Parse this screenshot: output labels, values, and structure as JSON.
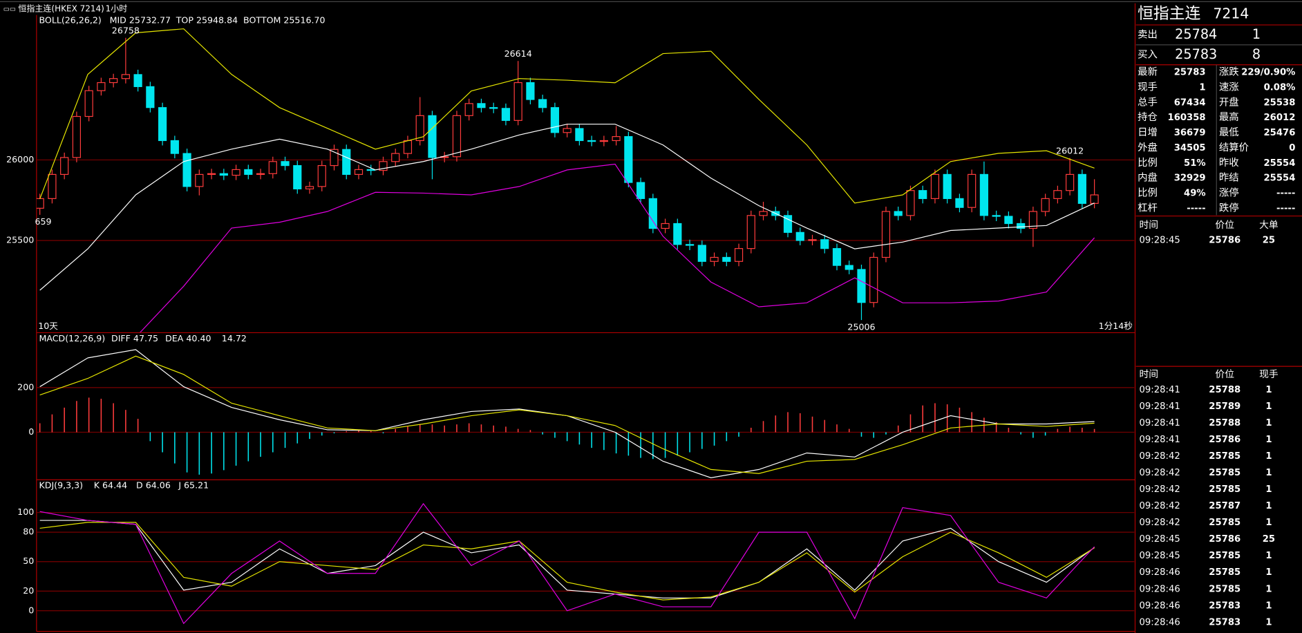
{
  "toolbar": {
    "symbol": "恒指主连(HKEX 7214)",
    "period": "1小时"
  },
  "chart_data": [
    {
      "type": "candlestick",
      "indicator": "BOLL(26,26,2)",
      "indicator_color": "#e6e600",
      "up_color": "#ff3c3c",
      "down_color": "#00e5ee",
      "ohlc": [
        [
          25700,
          25790,
          25659,
          25760
        ],
        [
          25760,
          25940,
          25730,
          25910
        ],
        [
          25910,
          26045,
          25880,
          26015
        ],
        [
          26015,
          26300,
          25985,
          26270
        ],
        [
          26270,
          26460,
          26240,
          26430
        ],
        [
          26430,
          26510,
          26400,
          26480
        ],
        [
          26480,
          26535,
          26450,
          26505
        ],
        [
          26505,
          26758,
          26475,
          26530
        ],
        [
          26530,
          26560,
          26425,
          26455
        ],
        [
          26455,
          26485,
          26295,
          26325
        ],
        [
          26325,
          26355,
          26090,
          26120
        ],
        [
          26120,
          26150,
          26010,
          26040
        ],
        [
          26040,
          26070,
          25805,
          25835
        ],
        [
          25835,
          25940,
          25780,
          25910
        ],
        [
          25910,
          25945,
          25880,
          25915
        ],
        [
          25915,
          25945,
          25875,
          25905
        ],
        [
          25905,
          25970,
          25875,
          25940
        ],
        [
          25940,
          25970,
          25880,
          25910
        ],
        [
          25910,
          25945,
          25880,
          25915
        ],
        [
          25915,
          26020,
          25885,
          25990
        ],
        [
          25990,
          26020,
          25935,
          25965
        ],
        [
          25965,
          25995,
          25790,
          25820
        ],
        [
          25820,
          25865,
          25790,
          25835
        ],
        [
          25835,
          25995,
          25805,
          25965
        ],
        [
          25965,
          26095,
          25935,
          26065
        ],
        [
          26065,
          26095,
          25880,
          25910
        ],
        [
          25910,
          25970,
          25880,
          25940
        ],
        [
          25940,
          25970,
          25905,
          25935
        ],
        [
          25935,
          26020,
          25905,
          25990
        ],
        [
          25990,
          26070,
          25960,
          26040
        ],
        [
          26040,
          26150,
          26010,
          26120
        ],
        [
          26120,
          26390,
          26090,
          26275
        ],
        [
          26275,
          26305,
          25880,
          26015
        ],
        [
          26015,
          26050,
          25985,
          26020
        ],
        [
          26020,
          26305,
          25990,
          26275
        ],
        [
          26275,
          26380,
          26245,
          26350
        ],
        [
          26350,
          26380,
          26295,
          26325
        ],
        [
          26325,
          26355,
          26290,
          26320
        ],
        [
          26320,
          26350,
          26215,
          26245
        ],
        [
          26245,
          26614,
          26215,
          26480
        ],
        [
          26480,
          26510,
          26345,
          26375
        ],
        [
          26375,
          26405,
          26295,
          26325
        ],
        [
          26325,
          26355,
          26140,
          26170
        ],
        [
          26170,
          26225,
          26140,
          26195
        ],
        [
          26195,
          26225,
          26090,
          26120
        ],
        [
          26120,
          26150,
          26085,
          26115
        ],
        [
          26115,
          26150,
          26085,
          26120
        ],
        [
          26120,
          26210,
          26090,
          26145
        ],
        [
          26145,
          26175,
          25830,
          25860
        ],
        [
          25860,
          25890,
          25730,
          25760
        ],
        [
          25760,
          25790,
          25545,
          25575
        ],
        [
          25575,
          25635,
          25545,
          25605
        ],
        [
          25605,
          25635,
          25445,
          25475
        ],
        [
          25475,
          25505,
          25440,
          25470
        ],
        [
          25470,
          25500,
          25340,
          25370
        ],
        [
          25370,
          25425,
          25340,
          25395
        ],
        [
          25395,
          25425,
          25340,
          25370
        ],
        [
          25370,
          25480,
          25340,
          25450
        ],
        [
          25450,
          25685,
          25420,
          25655
        ],
        [
          25655,
          25740,
          25625,
          25680
        ],
        [
          25680,
          25710,
          25625,
          25655
        ],
        [
          25655,
          25685,
          25520,
          25550
        ],
        [
          25550,
          25580,
          25470,
          25500
        ],
        [
          25500,
          25535,
          25470,
          25505
        ],
        [
          25505,
          25535,
          25420,
          25450
        ],
        [
          25450,
          25480,
          25315,
          25345
        ],
        [
          25345,
          25375,
          25290,
          25320
        ],
        [
          25320,
          25350,
          25006,
          25115
        ],
        [
          25115,
          25425,
          25085,
          25395
        ],
        [
          25395,
          25710,
          25365,
          25680
        ],
        [
          25680,
          25710,
          25625,
          25655
        ],
        [
          25655,
          25840,
          25625,
          25810
        ],
        [
          25810,
          25840,
          25730,
          25760
        ],
        [
          25760,
          25940,
          25730,
          25910
        ],
        [
          25910,
          25940,
          25730,
          25760
        ],
        [
          25760,
          25790,
          25675,
          25705
        ],
        [
          25705,
          25940,
          25675,
          25910
        ],
        [
          25910,
          25990,
          25625,
          25655
        ],
        [
          25655,
          25685,
          25620,
          25650
        ],
        [
          25650,
          25680,
          25575,
          25605
        ],
        [
          25605,
          25635,
          25545,
          25575
        ],
        [
          25575,
          25710,
          25460,
          25680
        ],
        [
          25680,
          25790,
          25650,
          25760
        ],
        [
          25760,
          25840,
          25730,
          25810
        ],
        [
          25810,
          26012,
          25780,
          25910
        ],
        [
          25910,
          25940,
          25700,
          25730
        ],
        [
          25730,
          25880,
          25700,
          25783
        ]
      ],
      "series": [
        {
          "name": "MID 25732.77",
          "color": "#ffffff",
          "values": [
            25191,
            25448,
            25783,
            25990,
            26067,
            26129,
            26067,
            25938,
            25990,
            26067,
            26155,
            26222,
            26222,
            26093,
            25887,
            25716,
            25577,
            25448,
            25490,
            25562,
            25577,
            25593,
            25732.77
          ]
        },
        {
          "name": "TOP 25948.84",
          "color": "#e6e600",
          "values": [
            25758,
            26531,
            26789,
            26814,
            26531,
            26325,
            26196,
            26067,
            26144,
            26428,
            26505,
            26495,
            26479,
            26660,
            26675,
            26376,
            26093,
            25732,
            25783,
            25990,
            26041,
            26057,
            25948.84
          ]
        },
        {
          "name": "BOTTOM 25516.70",
          "color": "#e000e0",
          "values": [
            null,
            null,
            24900,
            25216,
            25577,
            25613,
            25680,
            25799,
            25794,
            25783,
            25835,
            25938,
            25974,
            25526,
            25242,
            25088,
            25113,
            25268,
            25113,
            25113,
            25124,
            25180,
            25516.7
          ]
        }
      ],
      "ylim": [
        24930,
        26900
      ],
      "yticks": [
        25500,
        26000
      ],
      "grid": true,
      "annotations": [
        26758,
        26614,
        26012,
        25006,
        {
          "value": 25659,
          "label": "659"
        }
      ],
      "footer_left": "10天",
      "footer_right": "1分14秒"
    },
    {
      "type": "macd",
      "indicator": "MACD(12,26,9)",
      "indicator_color": "#e6e600",
      "series": [
        {
          "name": "DIFF 47.75",
          "color": "#ffffff",
          "values": [
            204,
            333,
            370,
            204,
            111,
            56,
            11,
            7,
            56,
            93,
            104,
            74,
            0,
            -130,
            -204,
            -167,
            -93,
            -111,
            0,
            74,
            37,
            37,
            47.75
          ]
        },
        {
          "name": "DEA 40.40",
          "color": "#e6e600",
          "values": [
            167,
            241,
            341,
            259,
            130,
            74,
            19,
            7,
            37,
            74,
            100,
            74,
            30,
            -74,
            -167,
            -185,
            -130,
            -122,
            -56,
            19,
            37,
            26,
            40.4
          ]
        }
      ],
      "histogram": {
        "name": "14.72",
        "up_color": "#ff3c3c",
        "down_color": "#00e5ee",
        "values": [
          40,
          80,
          110,
          140,
          155,
          150,
          130,
          100,
          60,
          -40,
          -90,
          -140,
          -180,
          -190,
          -185,
          -170,
          -150,
          -130,
          -110,
          -90,
          -70,
          -50,
          -30,
          -15,
          -5,
          5,
          10,
          5,
          -5,
          15,
          25,
          35,
          35,
          30,
          35,
          40,
          35,
          30,
          25,
          15,
          10,
          -10,
          -25,
          -40,
          -55,
          -70,
          -80,
          -95,
          -105,
          -115,
          -120,
          -115,
          -105,
          -90,
          -75,
          -60,
          -40,
          -20,
          20,
          50,
          75,
          90,
          85,
          70,
          55,
          35,
          15,
          -20,
          -25,
          -10,
          30,
          80,
          120,
          130,
          125,
          110,
          90,
          65,
          45,
          20,
          -10,
          -25,
          -15,
          15,
          25,
          20,
          14.72
        ]
      },
      "ylim": [
        -211,
        444
      ],
      "yticks": [
        0,
        200
      ],
      "grid": true
    },
    {
      "type": "line",
      "indicator": "KDJ(9,3,3)",
      "indicator_color": "#e6e600",
      "series": [
        {
          "name": "K 64.44",
          "color": "#ffffff",
          "values": [
            92,
            92,
            88,
            21,
            29,
            63,
            38,
            46,
            80,
            59,
            67,
            21,
            17,
            13,
            13,
            29,
            63,
            21,
            71,
            84,
            50,
            29,
            64.44
          ]
        },
        {
          "name": "D 64.06",
          "color": "#e6e600",
          "values": [
            84,
            90,
            90,
            34,
            25,
            50,
            46,
            42,
            67,
            63,
            71,
            29,
            19,
            11,
            14,
            29,
            59,
            19,
            55,
            80,
            59,
            34,
            64.06
          ]
        },
        {
          "name": "J 65.21",
          "color": "#e000e0",
          "values": [
            101,
            92,
            88,
            -13,
            38,
            71,
            38,
            38,
            109,
            46,
            71,
            0,
            17,
            4,
            4,
            80,
            80,
            -8,
            105,
            97,
            29,
            13,
            65.21
          ]
        }
      ],
      "ylim": [
        -21,
        133
      ],
      "yticks": [
        0,
        20,
        50,
        80,
        100
      ],
      "grid": true
    }
  ],
  "quote": {
    "name": "恒指主连",
    "code": "7214",
    "ask": {
      "label": "卖出",
      "price": "25784",
      "volume": "1"
    },
    "bid": {
      "label": "买入",
      "price": "25783",
      "volume": "8"
    },
    "stats": [
      [
        {
          "label": "最新",
          "value": "25783",
          "color": "#ff3c3c"
        },
        {
          "label": "涨跌",
          "value": "229/0.90%",
          "color": "#ff3c3c"
        }
      ],
      [
        {
          "label": "现手",
          "value": "1",
          "color": "#ffff00"
        },
        {
          "label": "速涨",
          "value": "0.08%",
          "color": "#ff3c3c"
        }
      ],
      [
        {
          "label": "总手",
          "value": "67434",
          "color": "#ffff00"
        },
        {
          "label": "开盘",
          "value": "25538",
          "color": "#00ff00"
        }
      ],
      [
        {
          "label": "持仓",
          "value": "160358",
          "color": "#ffff00"
        },
        {
          "label": "最高",
          "value": "26012",
          "color": "#ff3c3c"
        }
      ],
      [
        {
          "label": "日增",
          "value": "36679",
          "color": "#ffff00"
        },
        {
          "label": "最低",
          "value": "25476",
          "color": "#00ff00"
        }
      ],
      [
        {
          "label": "外盘",
          "value": "34505",
          "color": "#ffff00"
        },
        {
          "label": "结算价",
          "value": "0",
          "color": "#ffffff"
        }
      ],
      [
        {
          "label": "比例",
          "value": "51%",
          "color": "#ffff00"
        },
        {
          "label": "昨收",
          "value": "25554",
          "color": "#ffffff"
        }
      ],
      [
        {
          "label": "内盘",
          "value": "32929",
          "color": "#ffff00"
        },
        {
          "label": "昨结",
          "value": "25554",
          "color": "#ffffff"
        }
      ],
      [
        {
          "label": "比例",
          "value": "49%",
          "color": "#ffff00"
        },
        {
          "label": "涨停",
          "value": "-----",
          "color": "#ff3c3c"
        }
      ],
      [
        {
          "label": "杠杆",
          "value": "-----",
          "color": "#ffff00"
        },
        {
          "label": "跌停",
          "value": "-----",
          "color": "#00ff00"
        }
      ]
    ]
  },
  "big_orders": {
    "headers": [
      "时间",
      "价位",
      "大单"
    ],
    "rows": [
      {
        "time": "09:28:45",
        "price": "25786",
        "size": "25"
      }
    ]
  },
  "trades": {
    "headers": [
      "时间",
      "价位",
      "现手"
    ],
    "rows": [
      {
        "time": "09:28:41",
        "price": "25788",
        "size": "1",
        "size_color": "#00ff00"
      },
      {
        "time": "09:28:41",
        "price": "25789",
        "size": "1",
        "size_color": "#ff3c3c"
      },
      {
        "time": "09:28:41",
        "price": "25788",
        "size": "1",
        "size_color": "#00ff00"
      },
      {
        "time": "09:28:41",
        "price": "25786",
        "size": "1",
        "size_color": "#00ff00"
      },
      {
        "time": "09:28:42",
        "price": "25785",
        "size": "1",
        "size_color": "#00ff00"
      },
      {
        "time": "09:28:42",
        "price": "25785",
        "size": "1",
        "size_color": "#00ff00"
      },
      {
        "time": "09:28:42",
        "price": "25785",
        "size": "1",
        "size_color": "#00ff00"
      },
      {
        "time": "09:28:42",
        "price": "25787",
        "size": "1",
        "size_color": "#ff3c3c"
      },
      {
        "time": "09:28:42",
        "price": "25785",
        "size": "1",
        "size_color": "#00ff00"
      },
      {
        "time": "09:28:45",
        "price": "25786",
        "size": "25",
        "size_color": "#ff3c3c"
      },
      {
        "time": "09:28:45",
        "price": "25785",
        "size": "1",
        "size_color": "#00ff00"
      },
      {
        "time": "09:28:46",
        "price": "25785",
        "size": "1",
        "size_color": "#ff3c3c"
      },
      {
        "time": "09:28:46",
        "price": "25785",
        "size": "1",
        "size_color": "#ff3c3c"
      },
      {
        "time": "09:28:46",
        "price": "25783",
        "size": "1",
        "size_color": "#00ff00"
      },
      {
        "time": "09:28:46",
        "price": "25783",
        "size": "1",
        "size_color": "#00ff00"
      }
    ]
  }
}
